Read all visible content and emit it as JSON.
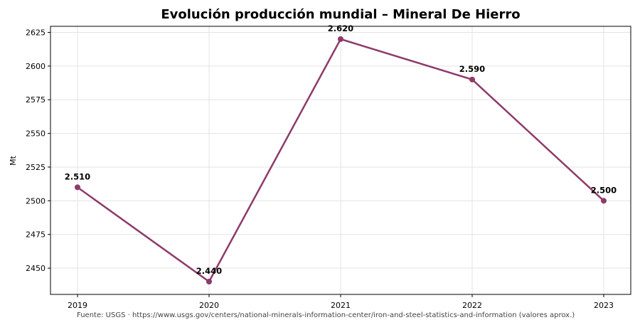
{
  "chart_data": {
    "type": "line",
    "title": "Evolución producción mundial – Mineral De Hierro",
    "xlabel": "",
    "ylabel": "Mt",
    "x": [
      "2019",
      "2020",
      "2021",
      "2022",
      "2023"
    ],
    "series": [
      {
        "values": [
          2510,
          2440,
          2620,
          2590,
          2500
        ],
        "labels": [
          "2.510",
          "2.440",
          "2.620",
          "2.590",
          "2.500"
        ],
        "color": "#8e3a6a"
      }
    ],
    "yticks": [
      2450,
      2475,
      2500,
      2525,
      2550,
      2575,
      2600,
      2625
    ],
    "ylim": [
      2430.5,
      2629.5
    ],
    "grid": true,
    "legend": "none"
  },
  "footer": {
    "source": "Fuente: USGS · https://www.usgs.gov/centers/national-minerals-information-center/iron-and-steel-statistics-and-information (valores aprox.)"
  }
}
